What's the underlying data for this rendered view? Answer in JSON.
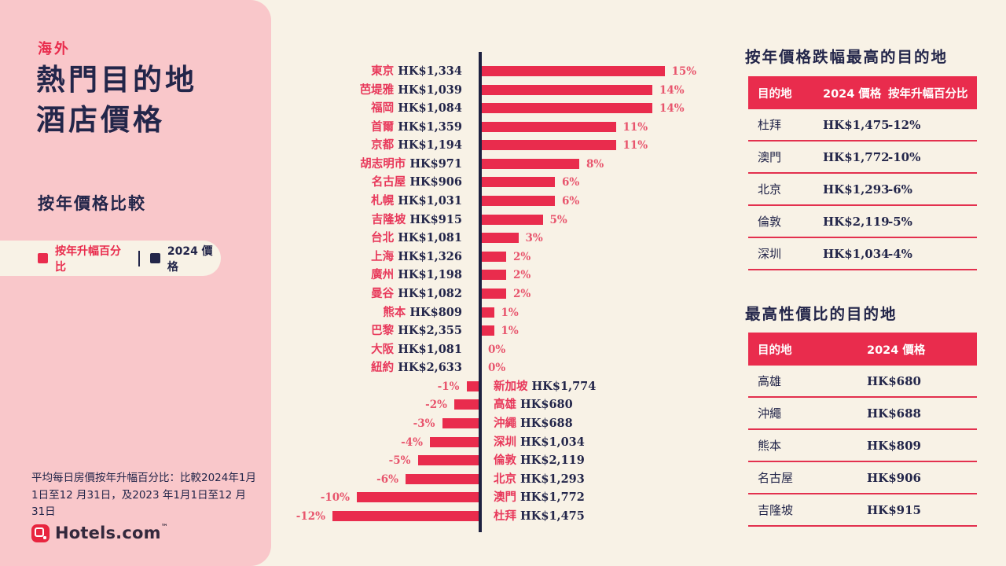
{
  "colors": {
    "accent_red": "#e92c4d",
    "navy": "#23264a",
    "pink_panel": "#f9c7ca",
    "cream_background": "#f8f2e6",
    "header_text_white": "#ffffff"
  },
  "sidebar": {
    "eyebrow": "海外",
    "title_line1": "熱門目的地",
    "title_line2": "酒店價格",
    "subtitle": "按年價格比較",
    "legend": [
      {
        "label": "按年升幅百分比",
        "color": "#e92c4d"
      },
      {
        "label": "2024 價格",
        "color": "#23264a"
      }
    ],
    "footnote": "平均每日房價按年升幅百分比：比較2024年1月1日至12 月31日，及2023 年1月1日至12 月31日",
    "logo_text": "Hotels.com",
    "logo_tm": "™"
  },
  "chart_data": {
    "type": "bar",
    "orientation": "horizontal",
    "title": "海外熱門目的地酒店價格 按年價格比較",
    "xlabel": "按年升幅百分比",
    "ylabel": "目的地 / 2024 價格",
    "xlim": [
      -12,
      15
    ],
    "grid": false,
    "legend_position": "left-panel",
    "categories": [
      "東京",
      "芭堤雅",
      "福岡",
      "首爾",
      "京都",
      "胡志明市",
      "名古屋",
      "札幌",
      "吉隆坡",
      "台北",
      "上海",
      "廣州",
      "曼谷",
      "熊本",
      "巴黎",
      "大阪",
      "紐約",
      "新加坡",
      "高雄",
      "沖繩",
      "深圳",
      "倫敦",
      "北京",
      "澳門",
      "杜拜"
    ],
    "series": [
      {
        "name": "按年升幅百分比",
        "unit": "%",
        "values": [
          15,
          14,
          14,
          11,
          11,
          8,
          6,
          6,
          5,
          3,
          2,
          2,
          2,
          1,
          1,
          0,
          0,
          -1,
          -2,
          -3,
          -4,
          -5,
          -6,
          -10,
          -12
        ]
      },
      {
        "name": "2024 價格",
        "values": [
          "HK$1,334",
          "HK$1,039",
          "HK$1,084",
          "HK$1,359",
          "HK$1,194",
          "HK$971",
          "HK$906",
          "HK$1,031",
          "HK$915",
          "HK$1,081",
          "HK$1,326",
          "HK$1,198",
          "HK$1,082",
          "HK$809",
          "HK$2,355",
          "HK$1,081",
          "HK$2,633",
          "HK$1,774",
          "HK$680",
          "HK$688",
          "HK$1,034",
          "HK$2,119",
          "HK$1,293",
          "HK$1,772",
          "HK$1,475"
        ]
      }
    ],
    "rows": [
      {
        "city": "東京",
        "price": "HK$1,334",
        "pct": 15,
        "pct_label": "15%"
      },
      {
        "city": "芭堤雅",
        "price": "HK$1,039",
        "pct": 14,
        "pct_label": "14%"
      },
      {
        "city": "福岡",
        "price": "HK$1,084",
        "pct": 14,
        "pct_label": "14%"
      },
      {
        "city": "首爾",
        "price": "HK$1,359",
        "pct": 11,
        "pct_label": "11%"
      },
      {
        "city": "京都",
        "price": "HK$1,194",
        "pct": 11,
        "pct_label": "11%"
      },
      {
        "city": "胡志明市",
        "price": "HK$971",
        "pct": 8,
        "pct_label": "8%"
      },
      {
        "city": "名古屋",
        "price": "HK$906",
        "pct": 6,
        "pct_label": "6%"
      },
      {
        "city": "札幌",
        "price": "HK$1,031",
        "pct": 6,
        "pct_label": "6%"
      },
      {
        "city": "吉隆坡",
        "price": "HK$915",
        "pct": 5,
        "pct_label": "5%"
      },
      {
        "city": "台北",
        "price": "HK$1,081",
        "pct": 3,
        "pct_label": "3%"
      },
      {
        "city": "上海",
        "price": "HK$1,326",
        "pct": 2,
        "pct_label": "2%"
      },
      {
        "city": "廣州",
        "price": "HK$1,198",
        "pct": 2,
        "pct_label": "2%"
      },
      {
        "city": "曼谷",
        "price": "HK$1,082",
        "pct": 2,
        "pct_label": "2%"
      },
      {
        "city": "熊本",
        "price": "HK$809",
        "pct": 1,
        "pct_label": "1%"
      },
      {
        "city": "巴黎",
        "price": "HK$2,355",
        "pct": 1,
        "pct_label": "1%"
      },
      {
        "city": "大阪",
        "price": "HK$1,081",
        "pct": 0,
        "pct_label": "0%"
      },
      {
        "city": "紐約",
        "price": "HK$2,633",
        "pct": 0,
        "pct_label": "0%"
      },
      {
        "city": "新加坡",
        "price": "HK$1,774",
        "pct": -1,
        "pct_label": "-1%"
      },
      {
        "city": "高雄",
        "price": "HK$680",
        "pct": -2,
        "pct_label": "-2%"
      },
      {
        "city": "沖繩",
        "price": "HK$688",
        "pct": -3,
        "pct_label": "-3%"
      },
      {
        "city": "深圳",
        "price": "HK$1,034",
        "pct": -4,
        "pct_label": "-4%"
      },
      {
        "city": "倫敦",
        "price": "HK$2,119",
        "pct": -5,
        "pct_label": "-5%"
      },
      {
        "city": "北京",
        "price": "HK$1,293",
        "pct": -6,
        "pct_label": "-6%"
      },
      {
        "city": "澳門",
        "price": "HK$1,772",
        "pct": -10,
        "pct_label": "-10%"
      },
      {
        "city": "杜拜",
        "price": "HK$1,475",
        "pct": -12,
        "pct_label": "-12%"
      }
    ]
  },
  "tables": [
    {
      "title": "按年價格跌幅最高的目的地",
      "headers": [
        "目的地",
        "2024 價格",
        "按年升幅百分比"
      ],
      "rows": [
        [
          "杜拜",
          "HK$1,475",
          "-12%"
        ],
        [
          "澳門",
          "HK$1,772",
          "-10%"
        ],
        [
          "北京",
          "HK$1,293",
          "-6%"
        ],
        [
          "倫敦",
          "HK$2,119",
          "-5%"
        ],
        [
          "深圳",
          "HK$1,034",
          "-4%"
        ]
      ]
    },
    {
      "title": "最高性價比的目的地",
      "headers": [
        "目的地",
        "2024 價格"
      ],
      "rows": [
        [
          "高雄",
          "HK$680"
        ],
        [
          "沖繩",
          "HK$688"
        ],
        [
          "熊本",
          "HK$809"
        ],
        [
          "名古屋",
          "HK$906"
        ],
        [
          "吉隆坡",
          "HK$915"
        ]
      ]
    }
  ]
}
